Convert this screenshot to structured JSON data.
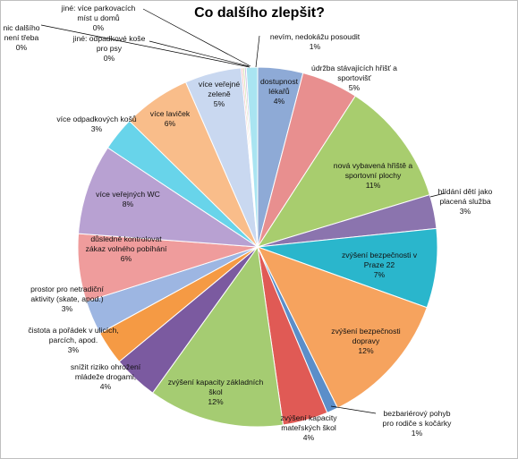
{
  "chart_data": {
    "type": "pie",
    "title": "Co dalšího zlepšit?",
    "slices": [
      {
        "label": [
          "dostupnost",
          "lékařů"
        ],
        "pct": "4%",
        "value": 4,
        "color": "#8eaad6"
      },
      {
        "label": [
          "údržba stávajících hřišť a",
          "sportovišť"
        ],
        "pct": "5%",
        "value": 5,
        "color": "#e88f8f"
      },
      {
        "label": [
          "nová vybavená hřiště a",
          "sportovní plochy"
        ],
        "pct": "11%",
        "value": 11,
        "color": "#a8cd6e"
      },
      {
        "label": [
          "hlídání dětí jako",
          "placená služba"
        ],
        "pct": "3%",
        "value": 3,
        "color": "#8b74ae"
      },
      {
        "label": [
          "zvýšení bezpečnosti v",
          "Praze 22"
        ],
        "pct": "7%",
        "value": 7,
        "color": "#2ab6cc"
      },
      {
        "label": [
          "zvýšení bezpečnosti",
          "dopravy"
        ],
        "pct": "12%",
        "value": 12,
        "color": "#f6a35e"
      },
      {
        "label": [
          "bezbariérový pohyb",
          "pro rodiče s kočárky"
        ],
        "pct": "1%",
        "value": 1,
        "color": "#5b8ec9"
      },
      {
        "label": [
          "zvýšení kapacity",
          "mateřských škol"
        ],
        "pct": "4%",
        "value": 4,
        "color": "#e05a55"
      },
      {
        "label": [
          "zvýšení kapacity základních",
          "škol"
        ],
        "pct": "12%",
        "value": 12,
        "color": "#a5cc72"
      },
      {
        "label": [
          "snížit riziko ohrožení",
          "mládeže drogami,"
        ],
        "pct": "4%",
        "value": 4,
        "color": "#7b5aa0"
      },
      {
        "label": [
          "čistota a pořádek  v ulicích,",
          "parcích, apod."
        ],
        "pct": "3%",
        "value": 3,
        "color": "#f59a44"
      },
      {
        "label": [
          "prostor pro netradiční",
          "aktivity (skate, apod.)"
        ],
        "pct": "3%",
        "value": 3,
        "color": "#9db6e2"
      },
      {
        "label": [
          "důsledně kontrolovat",
          "zákaz volného pobíhání"
        ],
        "pct": "6%",
        "value": 6,
        "color": "#ef9c9c"
      },
      {
        "label": [
          "více veřejných  WC"
        ],
        "pct": "8%",
        "value": 8,
        "color": "#b8a1d2"
      },
      {
        "label": [
          "více odpadkových košů"
        ],
        "pct": "3%",
        "value": 3,
        "color": "#68d4ea"
      },
      {
        "label": [
          "více laviček"
        ],
        "pct": "6%",
        "value": 6,
        "color": "#f9bd8a"
      },
      {
        "label": [
          "více veřejné",
          "zeleně"
        ],
        "pct": "5%",
        "value": 5,
        "color": "#c9d8f0"
      },
      {
        "label": [
          "jiné: odpadkové koše",
          "pro psy"
        ],
        "pct": "0%",
        "value": 0.15,
        "color": "#f4b6b6"
      },
      {
        "label": [
          "jiné: více parkovacích",
          "míst u domů"
        ],
        "pct": "0%",
        "value": 0.15,
        "color": "#cfe2a8"
      },
      {
        "label": [
          "nic dalšího",
          "není třeba"
        ],
        "pct": "0%",
        "value": 0.15,
        "color": "#c7b6dd"
      },
      {
        "label": [
          "nevím, nedokážu posoudit"
        ],
        "pct": "1%",
        "value": 1,
        "color": "#a9e4f1"
      }
    ]
  }
}
